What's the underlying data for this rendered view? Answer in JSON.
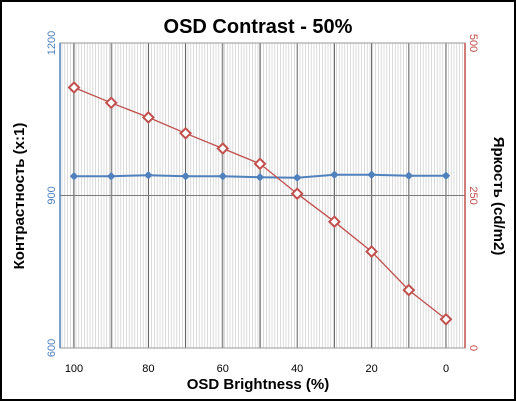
{
  "chart_data": {
    "type": "line",
    "title": "OSD Contrast - 50%",
    "xlabel": "OSD Brightness (%)",
    "ylabel_left": "Контрастность (x:1)",
    "ylabel_right": "Яркость (cd/m2)",
    "x_reversed": true,
    "xlim": [
      0,
      100
    ],
    "x_ticks": [
      "100",
      "80",
      "60",
      "40",
      "20",
      "0"
    ],
    "ylim_left": [
      600,
      1200
    ],
    "yticks_left": [
      "600",
      "900",
      "1200"
    ],
    "ylim_right": [
      0,
      500
    ],
    "yticks_right": [
      "0",
      "250",
      "500"
    ],
    "grid": "vertical",
    "x": [
      100,
      90,
      80,
      70,
      60,
      50,
      40,
      30,
      20,
      10,
      0
    ],
    "series": [
      {
        "axis": "left",
        "values": [
          938,
          938,
          940,
          938,
          938,
          936,
          935,
          941,
          941,
          939,
          939
        ],
        "color": "#4f81bd",
        "marker": "diamond-filled"
      },
      {
        "axis": "right",
        "values": [
          427,
          402,
          378,
          352,
          327,
          302,
          253,
          207,
          158,
          95,
          47
        ],
        "color": "#c0504d",
        "marker": "diamond-open"
      }
    ]
  }
}
